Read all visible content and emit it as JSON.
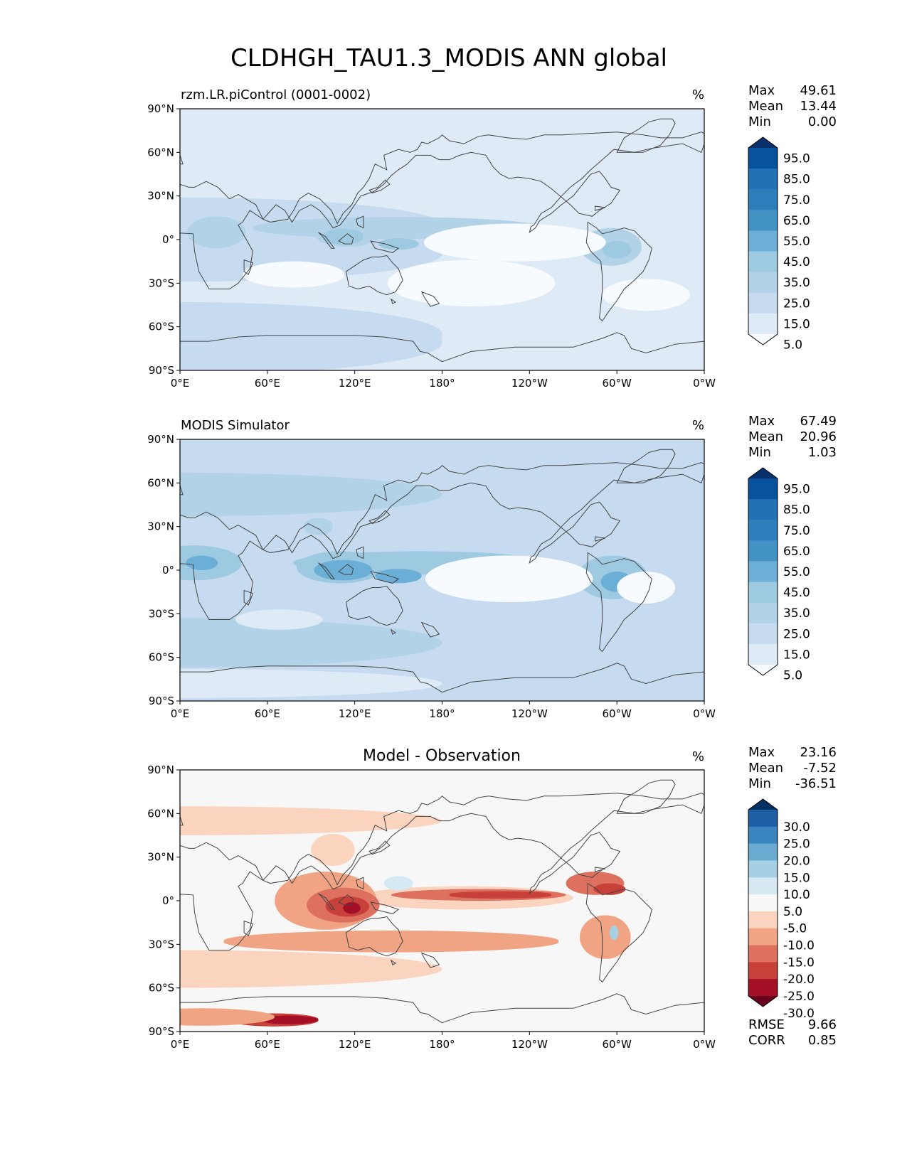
{
  "figure": {
    "title": "CLDHGH_TAU1.3_MODIS ANN global"
  },
  "axes": {
    "lat_ticks": [
      "90°N",
      "60°N",
      "30°N",
      "0°",
      "30°S",
      "60°S",
      "90°S"
    ],
    "lon_ticks": [
      "0°E",
      "60°E",
      "120°E",
      "180°",
      "120°W",
      "60°W",
      "0°W"
    ]
  },
  "colors": {
    "blues": [
      "#f7fbff",
      "#deebf7",
      "#c6dbef",
      "#b2d2e8",
      "#9ecae1",
      "#6baed6",
      "#4292c6",
      "#2f7ebc",
      "#2171b5",
      "#08519c",
      "#08306b"
    ],
    "diff": [
      "#67001f",
      "#a50f26",
      "#c8403a",
      "#de7060",
      "#f1a483",
      "#fbd4c0",
      "#f7f7f7",
      "#d6e8f2",
      "#a7cfe4",
      "#6aaad0",
      "#3a85c0",
      "#1f5fa5",
      "#053061"
    ],
    "land": "#444444"
  },
  "chart_data": [
    {
      "type": "heatmap",
      "title": "rzm.LR.piControl (0001-0002)",
      "units": "%",
      "xlim": [
        0,
        360
      ],
      "ylim": [
        -90,
        90
      ],
      "stats": {
        "max_label": "Max",
        "max": "49.61",
        "mean_label": "Mean",
        "mean": "13.44",
        "min_label": "Min",
        "min": "0.00"
      },
      "colorbar": {
        "labels": [
          "95.0",
          "85.0",
          "75.0",
          "65.0",
          "55.0",
          "45.0",
          "35.0",
          "25.0",
          "15.0",
          "5.0"
        ]
      }
    },
    {
      "type": "heatmap",
      "title": "MODIS Simulator",
      "units": "%",
      "xlim": [
        0,
        360
      ],
      "ylim": [
        -90,
        90
      ],
      "stats": {
        "max_label": "Max",
        "max": "67.49",
        "mean_label": "Mean",
        "mean": "20.96",
        "min_label": "Min",
        "min": "1.03"
      },
      "colorbar": {
        "labels": [
          "95.0",
          "85.0",
          "75.0",
          "65.0",
          "55.0",
          "45.0",
          "35.0",
          "25.0",
          "15.0",
          "5.0"
        ]
      }
    },
    {
      "type": "heatmap",
      "title": "Model - Observation",
      "units": "%",
      "xlim": [
        0,
        360
      ],
      "ylim": [
        -90,
        90
      ],
      "stats": {
        "max_label": "Max",
        "max": "23.16",
        "mean_label": "Mean",
        "mean": "-7.52",
        "min_label": "Min",
        "min": "-36.51"
      },
      "colorbar": {
        "labels": [
          "30.0",
          "25.0",
          "20.0",
          "15.0",
          "10.0",
          "5.0",
          "-5.0",
          "-10.0",
          "-15.0",
          "-20.0",
          "-25.0",
          "-30.0"
        ]
      },
      "metrics": {
        "rmse_label": "RMSE",
        "rmse": "9.66",
        "corr_label": "CORR",
        "corr": "0.85"
      }
    }
  ]
}
